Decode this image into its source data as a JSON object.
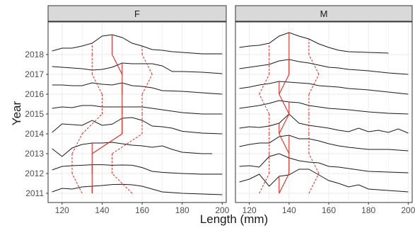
{
  "chart_data": {
    "type": "line",
    "subtype": "ridgeline-faceted",
    "xlabel": "Length (mm)",
    "ylabel": "Year",
    "xlim": [
      113,
      202
    ],
    "x_ticks": [
      120,
      140,
      160,
      180,
      200
    ],
    "y_ticks": [
      "2011",
      "2012",
      "2013",
      "2014",
      "2015",
      "2016",
      "2017",
      "2018"
    ],
    "grid": true,
    "colors": {
      "ridge_line": "#1a1a1a",
      "median_line": "#e8281e",
      "quartile_line": "#e8281e",
      "strip_fill": "#d9d9d9",
      "grid": "#ebebeb"
    },
    "facets": [
      {
        "label": "F",
        "years": [
          {
            "year": "2011",
            "x": [
              115,
              120,
              125,
              130,
              135,
              140,
              145,
              150,
              155,
              160,
              165,
              170,
              180,
              190,
              200
            ],
            "h": [
              0.1,
              0.35,
              0.3,
              0.45,
              0.5,
              0.55,
              0.62,
              0.64,
              0.6,
              0.5,
              0.3,
              0.1,
              0.0,
              -0.05,
              -0.1
            ],
            "q1": 130,
            "median": 135,
            "q3": 155
          },
          {
            "year": "2012",
            "x": [
              115,
              120,
              125,
              130,
              135,
              140,
              145,
              150,
              155,
              160,
              165,
              170,
              180,
              190,
              200
            ],
            "h": [
              0.25,
              0.5,
              0.55,
              0.58,
              0.62,
              0.62,
              0.58,
              0.6,
              0.58,
              0.42,
              0.15,
              0.08,
              0.0,
              -0.05,
              -0.05
            ],
            "q1": 125,
            "median": 135,
            "q3": 145
          },
          {
            "year": "2013",
            "x": [
              115,
              120,
              125,
              130,
              135,
              140,
              145,
              150,
              155,
              160,
              165,
              170,
              175,
              180,
              190,
              195
            ],
            "h": [
              0.35,
              -0.2,
              0.4,
              0.65,
              0.75,
              0.75,
              0.8,
              0.7,
              0.6,
              0.55,
              0.45,
              0.55,
              0.3,
              0.1,
              0.0,
              0.0
            ],
            "q1": 125,
            "median": 135,
            "q3": 145
          },
          {
            "year": "2014",
            "x": [
              115,
              120,
              125,
              130,
              135,
              140,
              145,
              150,
              155,
              160,
              165,
              170,
              175,
              180,
              190,
              200
            ],
            "h": [
              0.1,
              0.7,
              0.65,
              0.6,
              0.95,
              0.6,
              0.68,
              1.1,
              1.15,
              0.95,
              0.55,
              0.5,
              0.4,
              0.18,
              0.05,
              0.0
            ],
            "q1": 130,
            "median": 150,
            "q3": 160
          },
          {
            "year": "2015",
            "x": [
              115,
              120,
              125,
              130,
              135,
              140,
              145,
              150,
              155,
              160,
              165,
              170,
              180,
              190,
              200
            ],
            "h": [
              0.4,
              0.5,
              0.45,
              0.6,
              0.6,
              0.5,
              0.5,
              0.5,
              0.5,
              0.5,
              0.4,
              0.3,
              0.1,
              0.0,
              0.0
            ],
            "q1": 140,
            "median": 150,
            "q3": 160
          },
          {
            "year": "2016",
            "x": [
              115,
              120,
              125,
              130,
              135,
              140,
              145,
              150,
              155,
              160,
              165,
              170,
              180,
              190,
              200
            ],
            "h": [
              0.65,
              0.65,
              0.6,
              0.6,
              0.8,
              0.7,
              0.65,
              0.8,
              0.6,
              0.55,
              0.45,
              0.25,
              0.2,
              0.1,
              0.0
            ],
            "q1": 140,
            "median": 150,
            "q3": 160
          },
          {
            "year": "2017",
            "x": [
              115,
              120,
              125,
              130,
              135,
              140,
              145,
              150,
              155,
              160,
              165,
              170,
              175,
              180,
              190,
              200
            ],
            "h": [
              0.55,
              0.5,
              0.45,
              0.4,
              0.3,
              0.35,
              0.5,
              0.8,
              0.75,
              0.75,
              0.75,
              0.6,
              0.2,
              0.2,
              0.15,
              0.05
            ],
            "q1": 135,
            "median": 150,
            "q3": 165
          },
          {
            "year": "2018",
            "x": [
              115,
              120,
              125,
              130,
              135,
              140,
              145,
              150,
              155,
              160,
              165,
              170,
              175,
              180,
              190,
              200
            ],
            "h": [
              0.25,
              0.45,
              0.45,
              0.6,
              0.8,
              1.3,
              1.4,
              1.2,
              0.8,
              0.6,
              0.35,
              0.3,
              0.2,
              0.15,
              0.05,
              0.05
            ],
            "q1": 135,
            "median": 145,
            "q3": 160
          }
        ]
      },
      {
        "label": "M",
        "years": [
          {
            "year": "2011",
            "x": [
              115,
              120,
              125,
              130,
              135,
              140,
              145,
              150,
              155,
              160,
              165,
              170,
              175,
              180,
              190,
              200
            ],
            "h": [
              0.8,
              1.0,
              1.35,
              0.5,
              1.2,
              1.3,
              1.7,
              1.7,
              1.3,
              0.9,
              0.7,
              0.45,
              0.6,
              0.3,
              0.2,
              0.1
            ],
            "q1": 125,
            "median": 135,
            "q3": 150
          },
          {
            "year": "2012",
            "x": [
              115,
              120,
              125,
              130,
              135,
              140,
              145,
              150,
              155,
              160,
              165,
              170,
              180,
              190,
              200
            ],
            "h": [
              0.5,
              0.55,
              0.45,
              1.2,
              1.4,
              1.1,
              0.9,
              0.8,
              0.75,
              0.5,
              0.45,
              0.35,
              0.15,
              0.1,
              0.05
            ],
            "q1": 130,
            "median": 140,
            "q3": 155
          },
          {
            "year": "2013",
            "x": [
              115,
              120,
              125,
              130,
              135,
              140,
              145,
              150,
              155,
              160,
              165,
              170,
              180,
              190,
              200
            ],
            "h": [
              0.5,
              0.65,
              0.75,
              0.75,
              1.2,
              1.3,
              1.05,
              1.05,
              0.9,
              0.7,
              0.55,
              0.45,
              0.3,
              0.3,
              0.2
            ],
            "q1": 130,
            "median": 140,
            "q3": 150
          },
          {
            "year": "2014",
            "x": [
              115,
              120,
              125,
              130,
              135,
              140,
              145,
              150,
              155,
              160,
              165,
              170,
              175,
              180,
              185,
              190,
              195,
              200
            ],
            "h": [
              0.4,
              0.5,
              0.45,
              0.55,
              0.75,
              1.4,
              0.75,
              0.6,
              0.5,
              0.4,
              0.25,
              0.15,
              0.4,
              0.15,
              0.25,
              0.1,
              0.35,
              0.05
            ],
            "q1": 130,
            "median": 135,
            "q3": 150
          },
          {
            "year": "2015",
            "x": [
              115,
              120,
              125,
              130,
              135,
              140,
              145,
              150,
              155,
              160,
              165,
              170,
              180,
              190,
              200
            ],
            "h": [
              0.4,
              0.5,
              0.6,
              0.75,
              0.95,
              0.85,
              0.8,
              0.6,
              0.5,
              0.4,
              0.35,
              0.3,
              0.15,
              0.05,
              0.0
            ],
            "q1": 130,
            "median": 140,
            "q3": 150
          },
          {
            "year": "2016",
            "x": [
              115,
              120,
              125,
              130,
              135,
              140,
              145,
              150,
              155,
              160,
              165,
              170,
              180,
              190,
              200
            ],
            "h": [
              0.4,
              0.5,
              0.65,
              0.75,
              0.9,
              0.85,
              0.8,
              0.75,
              0.6,
              0.55,
              0.5,
              0.4,
              0.3,
              0.15,
              0.0
            ],
            "q1": 125,
            "median": 135,
            "q3": 150
          },
          {
            "year": "2017",
            "x": [
              115,
              120,
              125,
              130,
              135,
              140,
              145,
              150,
              155,
              160,
              165,
              170,
              180,
              190,
              200
            ],
            "h": [
              0.4,
              0.5,
              0.6,
              0.7,
              0.95,
              1.05,
              0.9,
              0.8,
              0.65,
              0.5,
              0.45,
              0.35,
              0.25,
              0.1,
              0.0
            ],
            "q1": 130,
            "median": 140,
            "q3": 155
          },
          {
            "year": "2018",
            "x": [
              115,
              120,
              125,
              130,
              135,
              140,
              145,
              150,
              155,
              160,
              165,
              170,
              180,
              190
            ],
            "h": [
              0.5,
              0.6,
              0.65,
              0.8,
              1.3,
              1.55,
              1.3,
              1.1,
              0.75,
              0.5,
              0.3,
              0.2,
              0.15,
              0.1
            ],
            "q1": 130,
            "median": 140,
            "q3": 150
          }
        ]
      }
    ]
  }
}
